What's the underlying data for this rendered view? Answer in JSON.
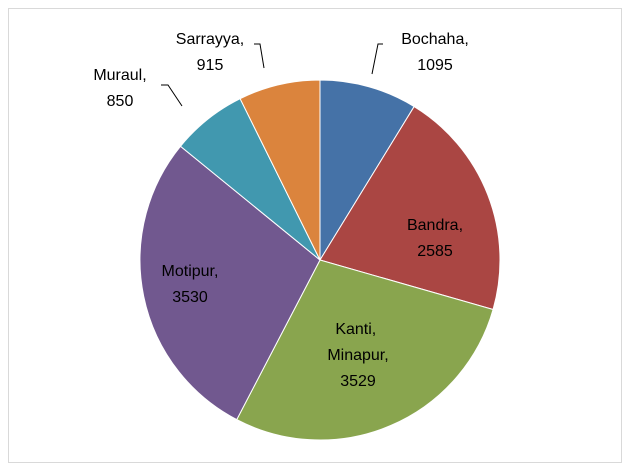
{
  "chart_data": {
    "type": "pie",
    "categories": [
      "Bochaha,",
      "Bandra,",
      "Kanti, Minapur,",
      "Motipur,",
      "Muraul,",
      "Sarrayya,"
    ],
    "values": [
      1095,
      2585,
      3529,
      3530,
      850,
      915
    ],
    "colors": [
      "#4572a7",
      "#aa4643",
      "#89a54e",
      "#71588f",
      "#4198af",
      "#db843d"
    ]
  }
}
